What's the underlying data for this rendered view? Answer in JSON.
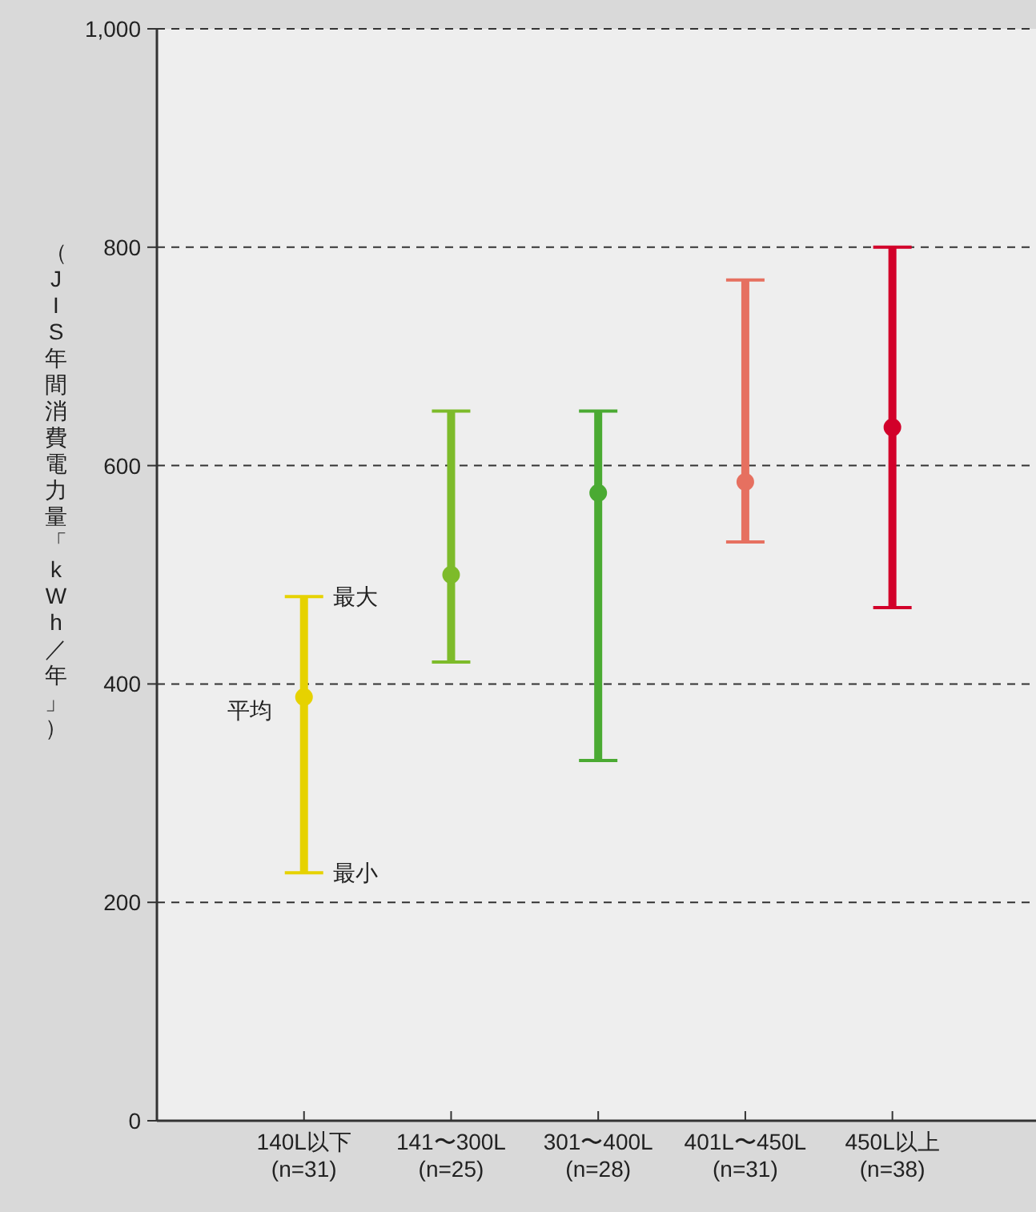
{
  "chart_data": {
    "type": "scatter",
    "categories": [
      "140L以下\n(n=31)",
      "141〜300L\n(n=25)",
      "301〜400L\n(n=28)",
      "401L〜450L\n(n=31)",
      "450L以上\n(n=38)"
    ],
    "values": [
      388,
      500,
      575,
      585,
      635
    ],
    "colors": [
      "#e6d200",
      "#7dbb2a",
      "#4aaa32",
      "#e67060",
      "#d2002a"
    ],
    "errors": [
      [
        227,
        480
      ],
      [
        420,
        650
      ],
      [
        330,
        650
      ],
      [
        530,
        770
      ],
      [
        470,
        800
      ]
    ],
    "ylim": [
      0,
      1000
    ],
    "yticks": [
      0,
      200,
      400,
      600,
      800,
      {
        "value": 1000,
        "label": "1,000"
      }
    ],
    "ylabel": "（JIS年間消費電力量「kWh／年」）",
    "grid": "y",
    "marker": "circle",
    "annotations": [
      {
        "text": "最大",
        "x": "140L以下\n(n=31)",
        "y": 480
      },
      {
        "text": "平均",
        "x": "140L以下\n(n=31)",
        "y": 388
      },
      {
        "text": "最小",
        "x": "140L以下\n(n=31)",
        "y": 227
      }
    ]
  }
}
